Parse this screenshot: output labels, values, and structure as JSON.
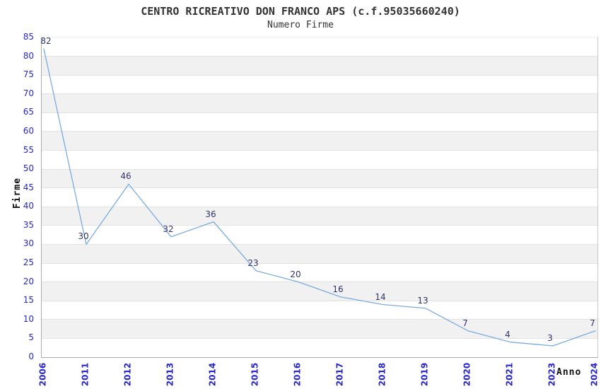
{
  "title": "CENTRO RICREATIVO DON FRANCO APS (c.f.95035660240)",
  "subtitle": "Numero Firme",
  "chart_data": {
    "type": "line",
    "title": "CENTRO RICREATIVO DON FRANCO APS (c.f.95035660240)",
    "subtitle": "Numero Firme",
    "xlabel": "Anno",
    "ylabel": "Firme",
    "categories": [
      "2006",
      "2011",
      "2012",
      "2013",
      "2014",
      "2015",
      "2016",
      "2017",
      "2018",
      "2019",
      "2020",
      "2021",
      "2023",
      "2024"
    ],
    "values": [
      82,
      30,
      46,
      32,
      36,
      23,
      20,
      16,
      14,
      13,
      7,
      4,
      3,
      7
    ],
    "ylim": [
      0,
      85
    ],
    "ytick_step": 5,
    "grid": "horizontal-bands-alternating",
    "legend": "none",
    "data_labels_shown": true,
    "colors": {
      "line": "#79ACDF",
      "tick_label": "#2626CC",
      "data_label": "#33336B",
      "band_fill": "#F1F1F1",
      "gridline": "#E3E3E3",
      "axis_border": "#ABABAB",
      "title_text": "#333333",
      "axis_name_text": "#111111"
    }
  }
}
